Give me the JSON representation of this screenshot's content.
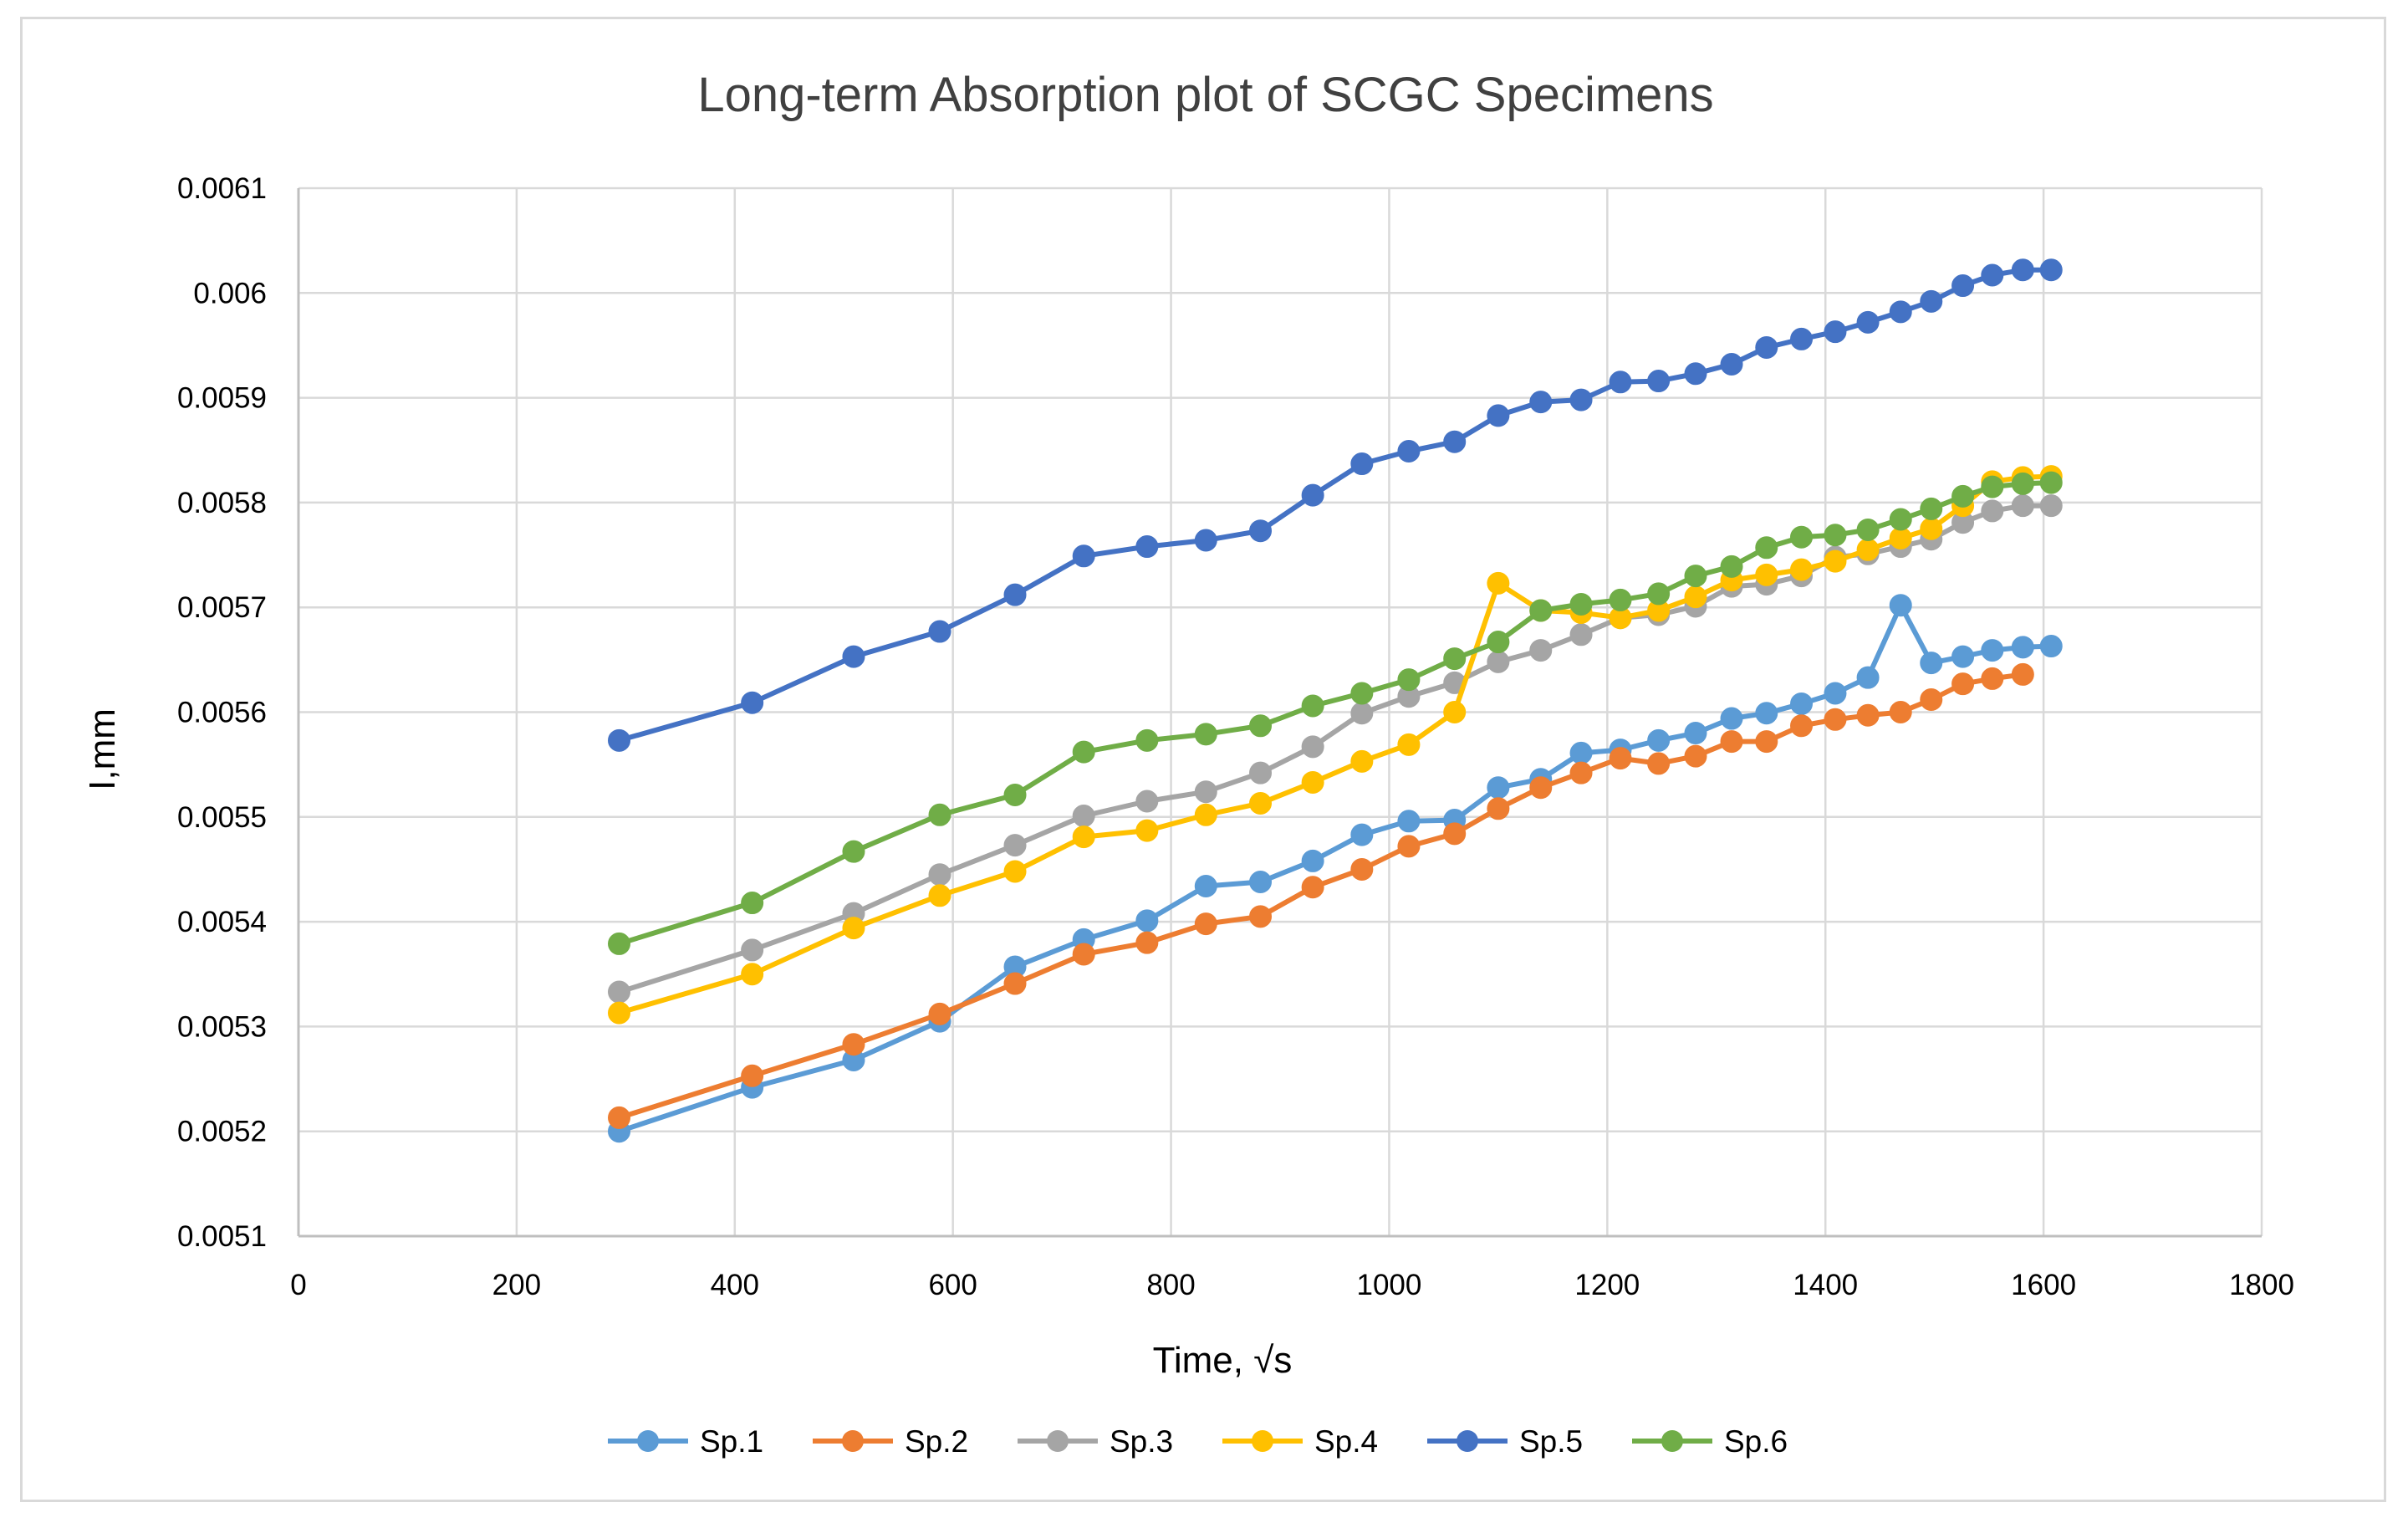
{
  "chart_data": {
    "type": "line",
    "title": "Long-term Absorption plot of SCGC Specimens",
    "xlabel": "Time, √s",
    "ylabel": "I,mm",
    "xlim": [
      0,
      1800
    ],
    "ylim": [
      0.0051,
      0.0061
    ],
    "x_ticks": [
      0,
      200,
      400,
      600,
      800,
      1000,
      1200,
      1400,
      1600,
      1800
    ],
    "y_ticks": [
      "0.0051",
      "0.0052",
      "0.0053",
      "0.0054",
      "0.0055",
      "0.0056",
      "0.0057",
      "0.0058",
      "0.0059",
      "0.006",
      "0.0061"
    ],
    "y_tick_values": [
      0.0051,
      0.0052,
      0.0053,
      0.0054,
      0.0055,
      0.0056,
      0.0057,
      0.0058,
      0.0059,
      0.006,
      0.0061
    ],
    "grid": true,
    "legend_position": "bottom",
    "series": [
      {
        "name": "Sp.1",
        "color": "#5b9bd5",
        "x": [
          294,
          416,
          509,
          588,
          657,
          720,
          778,
          832,
          882,
          930,
          975,
          1018,
          1060,
          1100,
          1139,
          1176,
          1212,
          1247,
          1281,
          1314,
          1346,
          1378,
          1409,
          1439,
          1469,
          1497,
          1526,
          1553,
          1581,
          1607
        ],
        "y": [
          0.0052,
          0.005242,
          0.005268,
          0.005305,
          0.005357,
          0.005383,
          0.005401,
          0.005434,
          0.005438,
          0.005458,
          0.005483,
          0.005496,
          0.005497,
          0.005528,
          0.005536,
          0.005561,
          0.005564,
          0.005573,
          0.00558,
          0.005594,
          0.005599,
          0.005608,
          0.005618,
          0.005633,
          0.005702,
          0.005647,
          0.005653,
          0.005659,
          0.005662,
          0.005663
        ]
      },
      {
        "name": "Sp.2",
        "color": "#ed7d31",
        "x": [
          294,
          416,
          509,
          588,
          657,
          720,
          778,
          832,
          882,
          930,
          975,
          1018,
          1060,
          1100,
          1139,
          1176,
          1212,
          1247,
          1281,
          1314,
          1346,
          1378,
          1409,
          1439,
          1469,
          1497,
          1526,
          1553,
          1581
        ],
        "y": [
          0.005213,
          0.005253,
          0.005283,
          0.005312,
          0.005341,
          0.005369,
          0.00538,
          0.005398,
          0.005405,
          0.005433,
          0.00545,
          0.005472,
          0.005484,
          0.005508,
          0.005528,
          0.005542,
          0.005556,
          0.005551,
          0.005558,
          0.005572,
          0.005572,
          0.005587,
          0.005593,
          0.005597,
          0.0056,
          0.005612,
          0.005627,
          0.005632,
          0.005636
        ]
      },
      {
        "name": "Sp.3",
        "color": "#a5a5a5",
        "x": [
          294,
          416,
          509,
          588,
          657,
          720,
          778,
          832,
          882,
          930,
          975,
          1018,
          1060,
          1100,
          1139,
          1176,
          1212,
          1247,
          1281,
          1314,
          1346,
          1378,
          1409,
          1439,
          1469,
          1497,
          1526,
          1553,
          1581,
          1607
        ],
        "y": [
          0.005333,
          0.005373,
          0.005408,
          0.005445,
          0.005473,
          0.005501,
          0.005515,
          0.005524,
          0.005542,
          0.005567,
          0.005599,
          0.005615,
          0.005628,
          0.005648,
          0.005659,
          0.005674,
          0.00569,
          0.005693,
          0.005701,
          0.00572,
          0.005722,
          0.00573,
          0.005748,
          0.005751,
          0.005758,
          0.005765,
          0.005781,
          0.005792,
          0.005797,
          0.005797
        ]
      },
      {
        "name": "Sp.4",
        "color": "#ffc000",
        "x": [
          294,
          416,
          509,
          588,
          657,
          720,
          778,
          832,
          882,
          930,
          975,
          1018,
          1060,
          1100,
          1139,
          1176,
          1212,
          1247,
          1281,
          1314,
          1346,
          1378,
          1409,
          1439,
          1469,
          1497,
          1526,
          1553,
          1581,
          1607
        ],
        "y": [
          0.005313,
          0.00535,
          0.005394,
          0.005425,
          0.005448,
          0.005481,
          0.005487,
          0.005502,
          0.005513,
          0.005533,
          0.005553,
          0.005569,
          0.0056,
          0.005723,
          0.005697,
          0.005695,
          0.00569,
          0.005697,
          0.00571,
          0.005726,
          0.005731,
          0.005736,
          0.005744,
          0.005755,
          0.005766,
          0.005775,
          0.005797,
          0.00582,
          0.005824,
          0.005825
        ]
      },
      {
        "name": "Sp.5",
        "color": "#4472c4",
        "x": [
          294,
          416,
          509,
          588,
          657,
          720,
          778,
          832,
          882,
          930,
          975,
          1018,
          1060,
          1100,
          1139,
          1176,
          1212,
          1247,
          1281,
          1314,
          1346,
          1378,
          1409,
          1439,
          1469,
          1497,
          1526,
          1553,
          1581,
          1607
        ],
        "y": [
          0.005573,
          0.005609,
          0.005653,
          0.005677,
          0.005712,
          0.005749,
          0.005758,
          0.005764,
          0.005773,
          0.005807,
          0.005837,
          0.005849,
          0.005858,
          0.005883,
          0.005896,
          0.005898,
          0.005915,
          0.005916,
          0.005923,
          0.005932,
          0.005948,
          0.005956,
          0.005963,
          0.005972,
          0.005982,
          0.005992,
          0.006007,
          0.006017,
          0.006022,
          0.006022
        ]
      },
      {
        "name": "Sp.6",
        "color": "#70ad47",
        "x": [
          294,
          416,
          509,
          588,
          657,
          720,
          778,
          832,
          882,
          930,
          975,
          1018,
          1060,
          1100,
          1139,
          1176,
          1212,
          1247,
          1281,
          1314,
          1346,
          1378,
          1409,
          1439,
          1469,
          1497,
          1526,
          1553,
          1581,
          1607
        ],
        "y": [
          0.005379,
          0.005418,
          0.005467,
          0.005502,
          0.005521,
          0.005562,
          0.005573,
          0.005579,
          0.005587,
          0.005606,
          0.005618,
          0.005631,
          0.005651,
          0.005667,
          0.005697,
          0.005703,
          0.005707,
          0.005713,
          0.00573,
          0.005739,
          0.005757,
          0.005767,
          0.005769,
          0.005774,
          0.005784,
          0.005794,
          0.005806,
          0.005815,
          0.005818,
          0.005819
        ]
      }
    ]
  }
}
